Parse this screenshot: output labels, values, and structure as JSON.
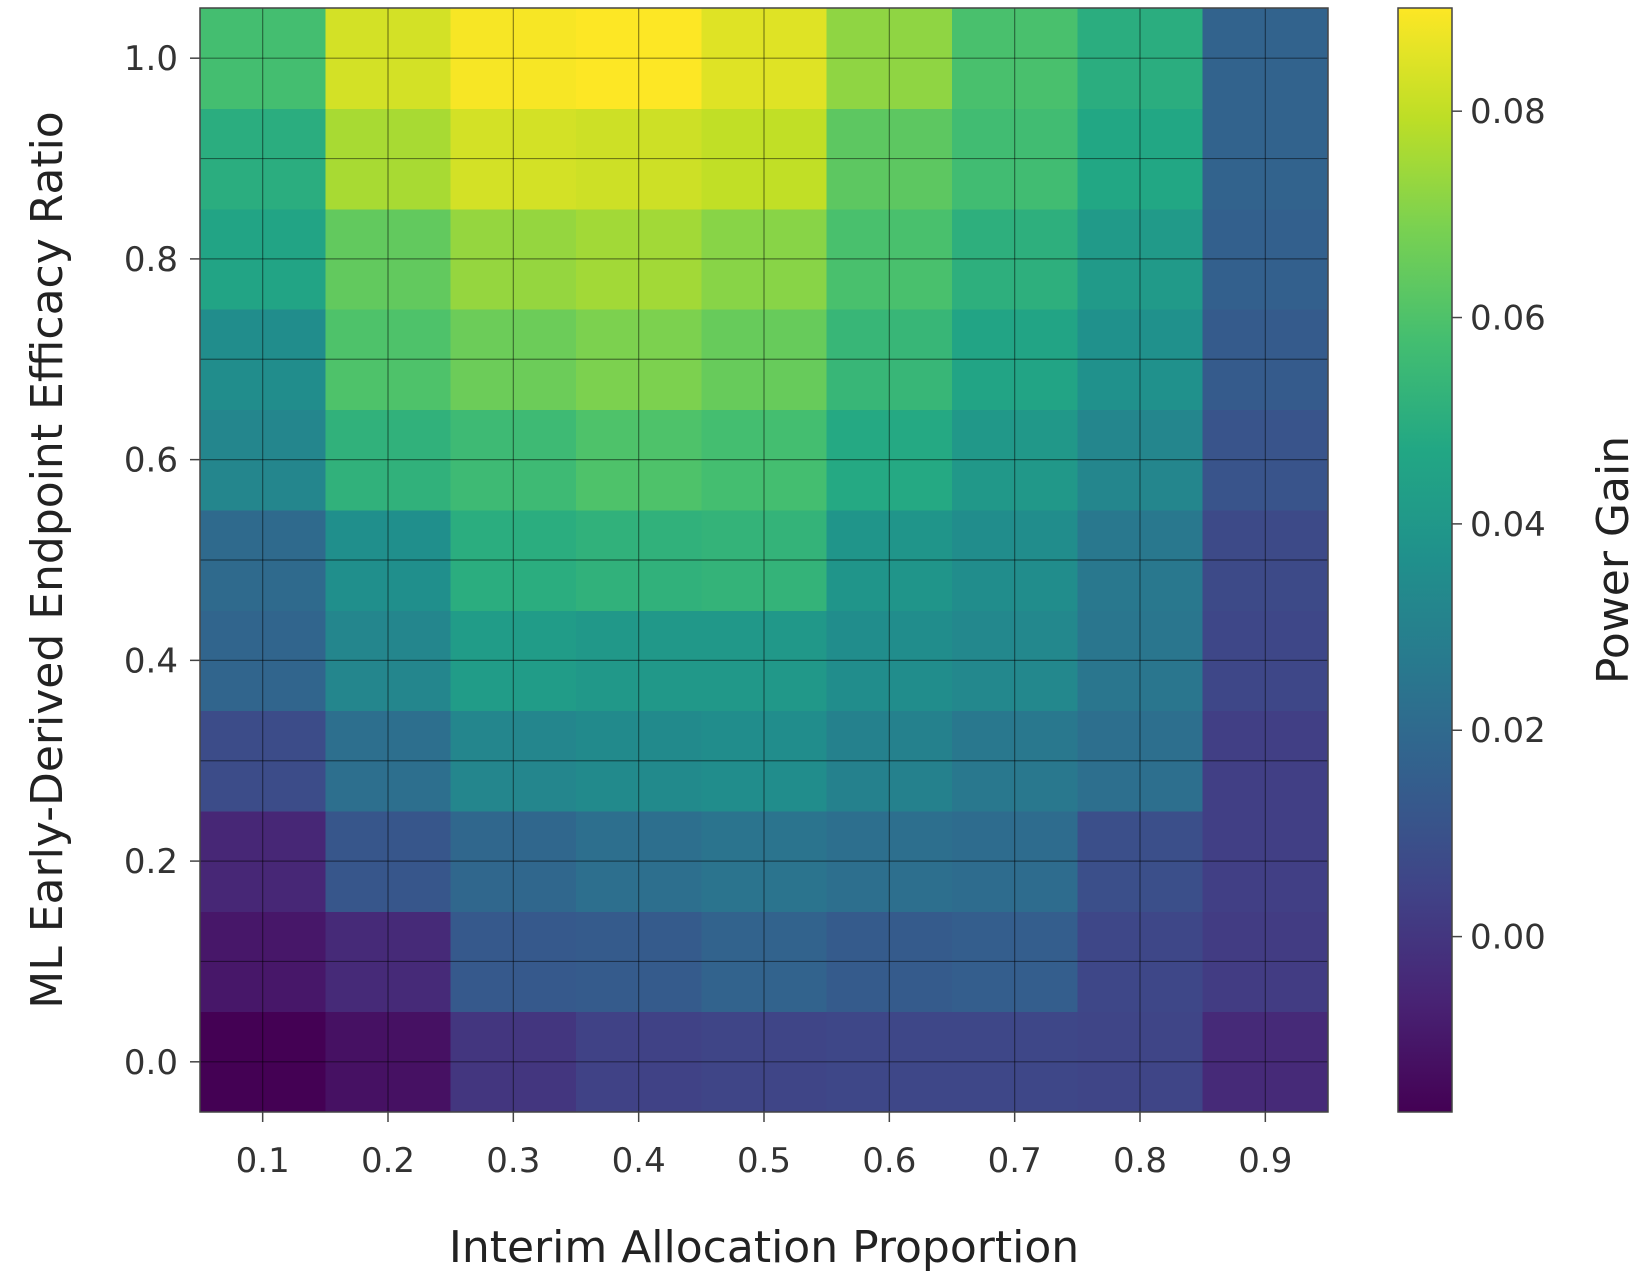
{
  "chart_data": {
    "type": "heatmap",
    "title": "",
    "xlabel": "Interim Allocation Proportion",
    "ylabel": "ML Early-Derived Endpoint Efficacy Ratio",
    "colorbar_label": "Power Gain",
    "x": [
      0.1,
      0.2,
      0.3,
      0.4,
      0.5,
      0.6,
      0.7,
      0.8,
      0.9
    ],
    "y": [
      0.0,
      0.1,
      0.2,
      0.3,
      0.4,
      0.5,
      0.6,
      0.7,
      0.8,
      0.9,
      1.0
    ],
    "x_ticks": [
      "0.1",
      "0.2",
      "0.3",
      "0.4",
      "0.5",
      "0.6",
      "0.7",
      "0.8",
      "0.9"
    ],
    "y_ticks": [
      "0.0",
      "0.2",
      "0.4",
      "0.6",
      "0.8",
      "1.0"
    ],
    "y_tick_values": [
      0.0,
      0.2,
      0.4,
      0.6,
      0.8,
      1.0
    ],
    "colorbar_ticks": [
      "0.00",
      "0.02",
      "0.04",
      "0.06",
      "0.08"
    ],
    "colorbar_tick_values": [
      0.0,
      0.02,
      0.04,
      0.06,
      0.08
    ],
    "vmin": -0.017,
    "vmax": 0.09,
    "colormap": "viridis",
    "grid": true,
    "values": [
      [
        -0.017,
        -0.012,
        0.0,
        0.004,
        0.005,
        0.006,
        0.006,
        0.005,
        -0.004
      ],
      [
        -0.01,
        -0.004,
        0.013,
        0.014,
        0.017,
        0.014,
        0.015,
        0.006,
        0.002
      ],
      [
        -0.005,
        0.012,
        0.019,
        0.022,
        0.024,
        0.022,
        0.021,
        0.009,
        0.003
      ],
      [
        0.008,
        0.022,
        0.032,
        0.034,
        0.035,
        0.03,
        0.026,
        0.022,
        0.003
      ],
      [
        0.018,
        0.032,
        0.042,
        0.04,
        0.04,
        0.035,
        0.033,
        0.025,
        0.006
      ],
      [
        0.02,
        0.036,
        0.05,
        0.052,
        0.053,
        0.039,
        0.035,
        0.026,
        0.007
      ],
      [
        0.032,
        0.052,
        0.056,
        0.06,
        0.058,
        0.048,
        0.04,
        0.032,
        0.011
      ],
      [
        0.035,
        0.06,
        0.066,
        0.069,
        0.065,
        0.054,
        0.046,
        0.037,
        0.014
      ],
      [
        0.046,
        0.064,
        0.073,
        0.075,
        0.071,
        0.059,
        0.051,
        0.041,
        0.016
      ],
      [
        0.05,
        0.076,
        0.083,
        0.082,
        0.08,
        0.063,
        0.057,
        0.047,
        0.017
      ],
      [
        0.058,
        0.083,
        0.089,
        0.09,
        0.085,
        0.072,
        0.059,
        0.05,
        0.017
      ]
    ]
  }
}
